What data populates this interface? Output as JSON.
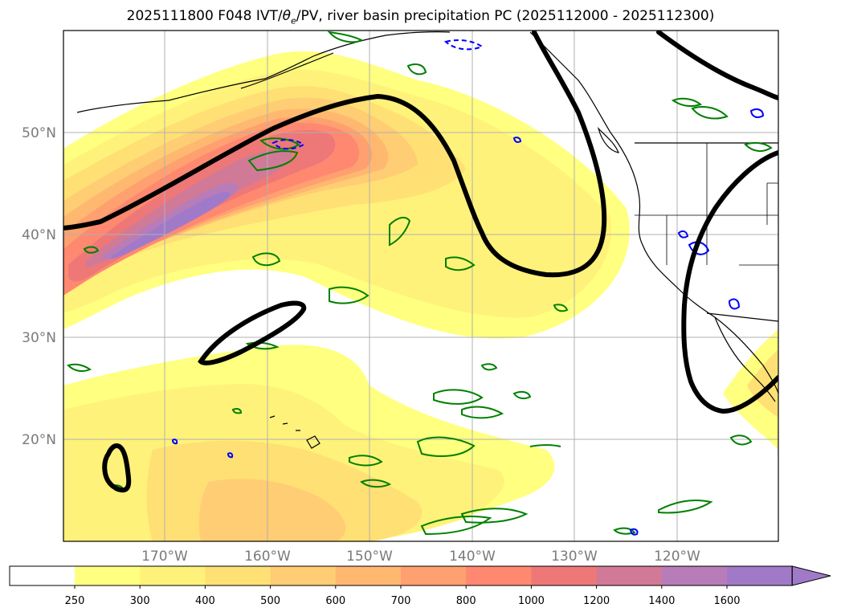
{
  "title": {
    "prefix": "2025111800 F048 IVT/",
    "theta": "θ",
    "theta_sub": "e",
    "suffix": "/PV, river basin precipitation PC (2025112000 - 2025112300)"
  },
  "map": {
    "lon_ticks": [
      "170°W",
      "160°W",
      "150°W",
      "140°W",
      "130°W",
      "120°W"
    ],
    "lat_ticks": [
      "50°N",
      "40°N",
      "30°N",
      "20°N"
    ]
  },
  "colorbar": {
    "ticks": [
      "250",
      "300",
      "400",
      "500",
      "600",
      "700",
      "800",
      "1000",
      "1200",
      "1400",
      "1600"
    ],
    "colors": [
      "#ffff80",
      "#fff27a",
      "#ffe074",
      "#ffcd74",
      "#ffb870",
      "#ffa070",
      "#ff8870",
      "#ee7878",
      "#d07a98",
      "#b87cb8",
      "#a07ac8"
    ],
    "under_color": "#ffffff"
  },
  "colors": {
    "pv_contour": "#000000",
    "positive_anomaly": "#008000",
    "negative_anomaly": "#0000ff",
    "coastline": "#000000"
  }
}
